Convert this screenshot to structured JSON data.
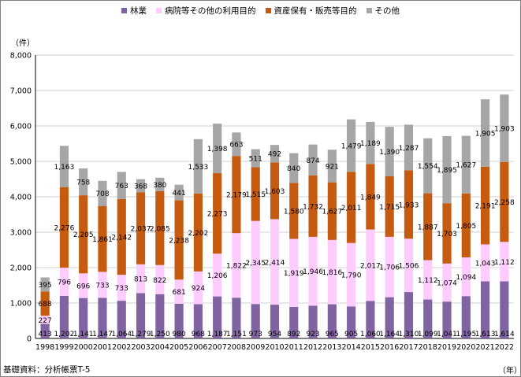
{
  "unit_y": "（件）",
  "unit_x": "（年）",
  "source_note": "基礎資料：分析帳票T-5",
  "chart_data": {
    "type": "bar",
    "stacked": true,
    "categories": [
      "1998",
      "1999",
      "2000",
      "2001",
      "2002",
      "2003",
      "2004",
      "2005",
      "2006",
      "2007",
      "2008",
      "2009",
      "2010",
      "2011",
      "2012",
      "2013",
      "2014",
      "2015",
      "2016",
      "2017",
      "2018",
      "2019",
      "2020",
      "2021",
      "2022"
    ],
    "series": [
      {
        "name": "林業",
        "color": "#8064a2",
        "values": [
          413,
          1202,
          1141,
          1147,
          1064,
          1279,
          1250,
          980,
          968,
          1187,
          1151,
          973,
          954,
          892,
          923,
          965,
          905,
          1060,
          1164,
          1310,
          1099,
          1041,
          1195,
          1613,
          1614
        ]
      },
      {
        "name": "病院等その他の利用目的",
        "color": "#ffccff",
        "values": [
          227,
          796,
          696,
          733,
          733,
          813,
          822,
          681,
          924,
          1206,
          1822,
          2345,
          2414,
          1919,
          1946,
          1816,
          1790,
          2017,
          1706,
          1506,
          1112,
          1074,
          1094,
          1043,
          1112
        ]
      },
      {
        "name": "資産保有・販売等目的",
        "color": "#c55a11",
        "values": [
          688,
          2276,
          2205,
          1861,
          2142,
          2037,
          2085,
          2238,
          2202,
          2273,
          2179,
          1515,
          1603,
          1580,
          1732,
          1627,
          2011,
          1849,
          1715,
          1933,
          1887,
          1703,
          1805,
          2191,
          2258
        ]
      },
      {
        "name": "その他",
        "color": "#a6a6a6",
        "values": [
          395,
          1163,
          758,
          708,
          763,
          368,
          380,
          441,
          1533,
          1398,
          663,
          511,
          492,
          840,
          874,
          921,
          1479,
          1189,
          1390,
          1287,
          1554,
          1895,
          1627,
          1905,
          1903
        ]
      }
    ],
    "ylim": [
      0,
      8000
    ],
    "yticks": [
      "0",
      "1,000",
      "2,000",
      "3,000",
      "4,000",
      "5,000",
      "6,000",
      "7,000",
      "8,000"
    ],
    "grid": true,
    "legend_position": "top"
  }
}
